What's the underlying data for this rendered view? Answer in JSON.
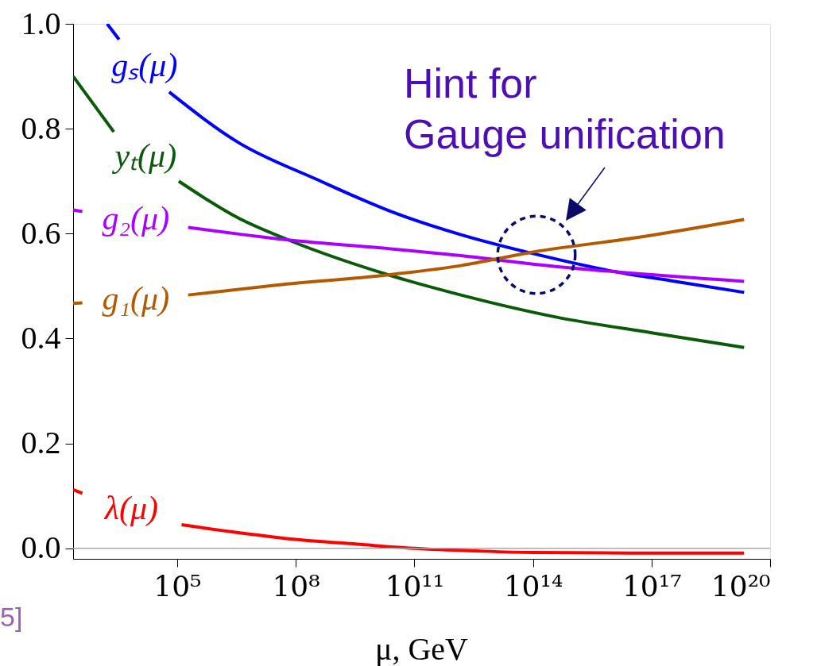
{
  "chart_data": {
    "type": "line",
    "xlabel": "μ, GeV",
    "log": "x",
    "xlim": [
      234,
      1e+20
    ],
    "xticks": [
      {
        "value": 100000.0,
        "label": "10⁵"
      },
      {
        "value": 100000000.0,
        "label": "10⁸"
      },
      {
        "value": 100000000000.0,
        "label": "10¹¹"
      },
      {
        "value": 100000000000000.0,
        "label": "10¹⁴"
      },
      {
        "value": 1e+17,
        "label": "10¹⁷"
      },
      {
        "value": 1e+20,
        "label": "10²⁰"
      }
    ],
    "ylim": [
      -0.02,
      1.0
    ],
    "yticks": [
      {
        "value": 0,
        "label": "0.0"
      },
      {
        "value": 0.2,
        "label": "0.2"
      },
      {
        "value": 0.4,
        "label": "0.4"
      },
      {
        "value": 0.6,
        "label": "0.6"
      },
      {
        "value": 0.8,
        "label": "0.8"
      },
      {
        "value": 1.0,
        "label": "1.0"
      }
    ],
    "grid": false,
    "legend": false,
    "line_style": "solid",
    "series": [
      {
        "name": "gₛ(μ)",
        "color": "#0000ff",
        "x": [
          1700.0,
          3400.0,
          15000.0,
          63000.0,
          3500000.0,
          350000000.0,
          36000000000.0,
          1500000000000.0,
          100000000000000.0,
          1.3e+16,
          3.9e+17,
          2.2e+19
        ],
        "values": [
          1.0,
          0.97,
          null,
          0.87,
          0.774,
          0.703,
          0.638,
          0.598,
          0.562,
          0.527,
          0.509,
          0.488
        ]
      },
      {
        "name": "yₜ(μ)",
        "color": "#0a5a0a",
        "x": [
          234,
          2500.0,
          16000.0,
          110000.0,
          3500000.0,
          65000000.0,
          23000000000.0,
          1500000000000.0,
          380000000000000.0,
          1e+17,
          2.2e+19
        ],
        "values": [
          0.9,
          0.794,
          null,
          0.7,
          0.63,
          0.588,
          0.521,
          0.483,
          0.441,
          0.411,
          0.383
        ]
      },
      {
        "name": "g₂(μ)",
        "color": "#aa00ff",
        "x": [
          234,
          400,
          9000.0,
          190000.0,
          65000000.0,
          36000000000.0,
          1500000000000.0,
          100000000000000.0,
          1.3e+16,
          2.2e+19
        ],
        "values": [
          0.645,
          0.642,
          null,
          0.612,
          0.588,
          0.57,
          0.558,
          0.542,
          0.527,
          0.509
        ]
      },
      {
        "name": "g₁(μ)",
        "color": "#b35a00",
        "x": [
          234,
          400,
          9000.0,
          190000.0,
          35000000.0,
          20000000000.0,
          1500000000000.0,
          100000000000000.0,
          3.9e+16,
          2.2e+19
        ],
        "values": [
          0.467,
          0.468,
          null,
          0.483,
          0.502,
          0.521,
          0.539,
          0.565,
          0.592,
          0.627
        ]
      },
      {
        "name": "λ(μ)",
        "color": "#ff0000",
        "x": [
          234,
          400,
          7000.0,
          130000.0,
          3500000.0,
          100000000.0,
          3600000000.0,
          100000000000.0,
          3700000000000.0,
          100000000000000.0,
          3.9e+16,
          2.2e+19
        ],
        "values": [
          0.112,
          0.105,
          null,
          0.045,
          0.03,
          0.017,
          0.008,
          0.0,
          -0.005,
          -0.008,
          -0.009,
          -0.009
        ]
      }
    ],
    "ref_lines": [
      {
        "axis": "y",
        "value": 0,
        "color": "#aaaaaa"
      }
    ],
    "annotations": [
      "Hint for\nGauge unification",
      "5]"
    ]
  }
}
